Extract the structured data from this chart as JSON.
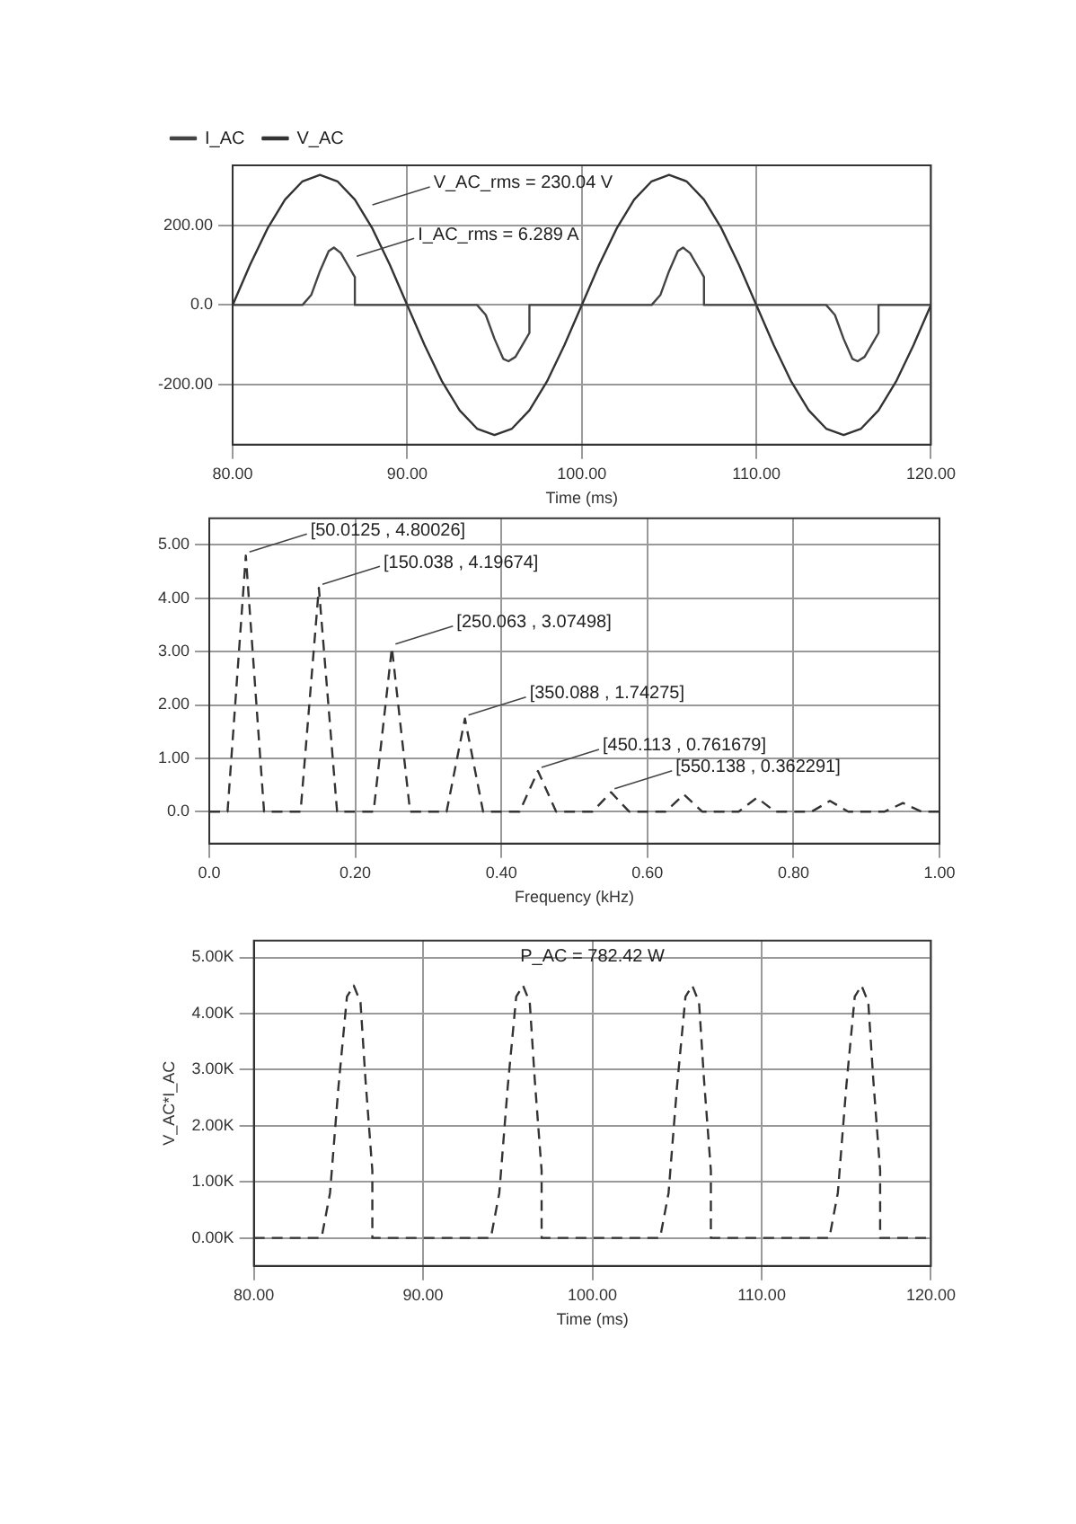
{
  "chart_data": [
    {
      "type": "line",
      "xlabel": "Time (ms)",
      "xlim": [
        80,
        120
      ],
      "ylim": [
        -350,
        350
      ],
      "grid": true,
      "legend": "top left",
      "line_style": "solid",
      "marker": "none",
      "xticks": [
        {
          "value": 80,
          "label": "80.00"
        },
        {
          "value": 90,
          "label": "90.00"
        },
        {
          "value": 100,
          "label": "100.00"
        },
        {
          "value": 110,
          "label": "110.00"
        },
        {
          "value": 120,
          "label": "120.00"
        }
      ],
      "yticks": [
        {
          "value": -200,
          "label": "-200.00"
        },
        {
          "value": 0,
          "label": "0.0"
        },
        {
          "value": 200,
          "label": "200.00"
        }
      ],
      "series": [
        {
          "name": "I_AC",
          "color": "#444444",
          "x": [
            80,
            84,
            84.5,
            85,
            85.5,
            85.8,
            86.2,
            86.6,
            87,
            87,
            94,
            94.5,
            95,
            95.5,
            95.8,
            96.2,
            96.6,
            97,
            97,
            104,
            104.5,
            105,
            105.5,
            105.8,
            106.2,
            106.6,
            107,
            107,
            114,
            114.5,
            115,
            115.5,
            115.8,
            116.2,
            116.6,
            117,
            117,
            120
          ],
          "values": [
            0,
            0,
            25,
            85,
            135,
            144,
            130,
            100,
            70,
            0,
            0,
            -25,
            -85,
            -135,
            -141,
            -130,
            -100,
            -70,
            0,
            0,
            25,
            85,
            135,
            144,
            130,
            100,
            70,
            0,
            0,
            -25,
            -85,
            -135,
            -141,
            -130,
            -100,
            -70,
            0,
            0
          ]
        },
        {
          "name": "V_AC",
          "color": "#333333",
          "x": [
            80,
            81,
            82,
            83,
            84,
            85,
            86,
            87,
            88,
            89,
            90,
            91,
            92,
            93,
            94,
            95,
            96,
            97,
            98,
            99,
            100,
            101,
            102,
            103,
            104,
            105,
            106,
            107,
            108,
            109,
            110,
            111,
            112,
            113,
            114,
            115,
            116,
            117,
            118,
            119,
            120
          ],
          "values": [
            0,
            101,
            192,
            264,
            310,
            326,
            310,
            264,
            192,
            101,
            0,
            -101,
            -192,
            -264,
            -310,
            -326,
            -310,
            -264,
            -192,
            -101,
            0,
            101,
            192,
            264,
            310,
            326,
            310,
            264,
            192,
            101,
            0,
            -101,
            -192,
            -264,
            -310,
            -326,
            -310,
            -264,
            -192,
            -101,
            0
          ]
        }
      ],
      "annotations": [
        {
          "text": "V_AC_rms = 230.04 V",
          "x": 87.8,
          "y": 242
        },
        {
          "text": "I_AC_rms = 6.289 A",
          "x": 86.9,
          "y": 113
        }
      ]
    },
    {
      "type": "line",
      "xlabel": "Frequency (kHz)",
      "xlim": [
        0,
        1
      ],
      "ylim": [
        -0.6,
        5.5
      ],
      "grid": true,
      "line_style": "dashed",
      "marker": "none",
      "xticks": [
        {
          "value": 0,
          "label": "0.0"
        },
        {
          "value": 0.2,
          "label": "0.20"
        },
        {
          "value": 0.4,
          "label": "0.40"
        },
        {
          "value": 0.6,
          "label": "0.60"
        },
        {
          "value": 0.8,
          "label": "0.80"
        },
        {
          "value": 1,
          "label": "1.00"
        }
      ],
      "yticks": [
        {
          "value": 0,
          "label": "0.0"
        },
        {
          "value": 1,
          "label": "1.00"
        },
        {
          "value": 2,
          "label": "2.00"
        },
        {
          "value": 3,
          "label": "3.00"
        },
        {
          "value": 4,
          "label": "4.00"
        },
        {
          "value": 5,
          "label": "5.00"
        }
      ],
      "series": [
        {
          "color": "#333333",
          "x": [
            0,
            0.025,
            0.0500125,
            0.075,
            0.125,
            0.150038,
            0.175,
            0.225,
            0.250063,
            0.275,
            0.325,
            0.350088,
            0.375,
            0.425,
            0.450113,
            0.475,
            0.525,
            0.550138,
            0.575,
            0.625,
            0.65,
            0.675,
            0.725,
            0.75,
            0.775,
            0.825,
            0.85,
            0.875,
            0.925,
            0.95,
            0.975,
            1
          ],
          "values": [
            0,
            0,
            4.80026,
            0,
            0,
            4.19674,
            0,
            0,
            3.07498,
            0,
            0,
            1.74275,
            0,
            0,
            0.761679,
            0,
            0,
            0.362291,
            0,
            0,
            0.32,
            0,
            0,
            0.26,
            0,
            0,
            0.2,
            0,
            0,
            0.16,
            0,
            0
          ]
        }
      ],
      "annotations": [
        {
          "text": "[50.0125 , 4.80026]",
          "x": 0.0500125,
          "y": 4.80026
        },
        {
          "text": "[150.038 , 4.19674]",
          "x": 0.150038,
          "y": 4.19674
        },
        {
          "text": "[250.063 , 3.07498]",
          "x": 0.250063,
          "y": 3.07498
        },
        {
          "text": "[350.088 , 1.74275]",
          "x": 0.350088,
          "y": 1.74275
        },
        {
          "text": "[450.113 , 0.761679]",
          "x": 0.450113,
          "y": 0.761679
        },
        {
          "text": "[550.138 , 0.362291]",
          "x": 0.550138,
          "y": 0.362291
        }
      ]
    },
    {
      "type": "line",
      "xlabel": "Time (ms)",
      "ylabel": "V_AC*I_AC",
      "xlim": [
        80,
        120
      ],
      "ylim": [
        -500,
        5300
      ],
      "grid": true,
      "line_style": "dashed",
      "marker": "none",
      "xticks": [
        {
          "value": 80,
          "label": "80.00"
        },
        {
          "value": 90,
          "label": "90.00"
        },
        {
          "value": 100,
          "label": "100.00"
        },
        {
          "value": 110,
          "label": "110.00"
        },
        {
          "value": 120,
          "label": "120.00"
        }
      ],
      "yticks": [
        {
          "value": 0,
          "label": "0.00K"
        },
        {
          "value": 1000,
          "label": "1.00K"
        },
        {
          "value": 2000,
          "label": "2.00K"
        },
        {
          "value": 3000,
          "label": "3.00K"
        },
        {
          "value": 4000,
          "label": "4.00K"
        },
        {
          "value": 5000,
          "label": "5.00K"
        }
      ],
      "series": [
        {
          "color": "#333333",
          "x": [
            80,
            84,
            84.5,
            85,
            85.5,
            85.9,
            86.3,
            86.6,
            87,
            87,
            94,
            94.5,
            95,
            95.5,
            95.9,
            96.3,
            96.6,
            97,
            97,
            104,
            104.5,
            105,
            105.5,
            105.9,
            106.3,
            106.6,
            107,
            107,
            114,
            114.5,
            115,
            115.5,
            115.9,
            116.3,
            116.6,
            117,
            117,
            120
          ],
          "values": [
            0,
            0,
            800,
            2700,
            4300,
            4500,
            4200,
            2800,
            1200,
            0,
            0,
            800,
            2700,
            4300,
            4500,
            4200,
            2800,
            1200,
            0,
            0,
            800,
            2700,
            4300,
            4500,
            4200,
            2800,
            1200,
            0,
            0,
            800,
            2700,
            4300,
            4500,
            4200,
            2800,
            1200,
            0,
            0
          ]
        }
      ],
      "annotations": [
        "P_AC = 782.42 W"
      ]
    }
  ]
}
